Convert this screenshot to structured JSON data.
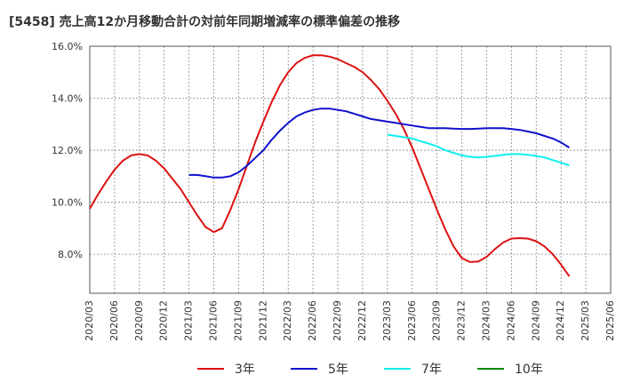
{
  "chart_data": {
    "type": "line",
    "title": "[5458]  売上高12か月移動合計の対前年同期増減率の標準偏差の推移",
    "xlabel": "",
    "ylabel": "",
    "ylim": [
      6.5,
      16.0
    ],
    "yticks": [
      "8.0%",
      "10.0%",
      "12.0%",
      "14.0%",
      "16.0%"
    ],
    "ytick_values": [
      8.0,
      10.0,
      12.0,
      14.0,
      16.0
    ],
    "x_categories": [
      "2020/03",
      "2020/06",
      "2020/09",
      "2020/12",
      "2021/03",
      "2021/06",
      "2021/09",
      "2021/12",
      "2022/03",
      "2022/06",
      "2022/09",
      "2022/12",
      "2023/03",
      "2023/06",
      "2023/09",
      "2023/12",
      "2024/03",
      "2024/06",
      "2024/09",
      "2024/12",
      "2025/03",
      "2025/06"
    ],
    "grid": true,
    "legend_position": "bottom",
    "series": [
      {
        "name": "3年",
        "color": "#dd1111",
        "x_index": [
          0,
          1,
          2,
          3,
          4,
          5,
          6,
          7,
          8,
          9,
          10,
          11,
          12,
          13,
          14,
          15,
          16,
          17,
          18,
          19,
          20,
          21,
          22,
          23,
          24,
          25,
          26,
          27,
          28,
          29,
          30,
          31,
          32,
          33,
          34,
          35,
          36,
          37,
          38,
          39,
          40,
          41,
          42,
          43,
          44,
          45,
          46,
          47,
          48,
          49,
          50,
          51,
          52,
          53,
          54,
          55,
          56,
          57,
          58,
          59,
          60
        ],
        "values": [
          9.75,
          10.3,
          10.8,
          11.25,
          11.6,
          11.8,
          11.85,
          11.8,
          11.6,
          11.3,
          10.9,
          10.5,
          10.0,
          9.5,
          9.05,
          8.85,
          9.0,
          9.7,
          10.5,
          11.4,
          12.3,
          13.1,
          13.85,
          14.5,
          15.0,
          15.35,
          15.55,
          15.65,
          15.65,
          15.6,
          15.5,
          15.35,
          15.2,
          15.0,
          14.7,
          14.35,
          13.9,
          13.4,
          12.8,
          12.1,
          11.3,
          10.5,
          9.7,
          8.95,
          8.3,
          7.85,
          7.7,
          7.72,
          7.9,
          8.2,
          8.45,
          8.6,
          8.62,
          8.6,
          8.5,
          8.3,
          8.0,
          7.6,
          7.15,
          null,
          null
        ]
      },
      {
        "name": "5年",
        "color": "#1111cc",
        "x_index": [
          12,
          13,
          14,
          15,
          16,
          17,
          18,
          19,
          20,
          21,
          22,
          23,
          24,
          25,
          26,
          27,
          28,
          29,
          30,
          31,
          32,
          33,
          34,
          35,
          36,
          37,
          38,
          39,
          40,
          41,
          42,
          43,
          44,
          45,
          46,
          47,
          48,
          49,
          50,
          51,
          52,
          53,
          54,
          55,
          56,
          57,
          58
        ],
        "values": [
          11.05,
          11.05,
          11.0,
          10.95,
          10.95,
          11.0,
          11.15,
          11.4,
          11.7,
          12.0,
          12.4,
          12.75,
          13.05,
          13.3,
          13.45,
          13.55,
          13.6,
          13.6,
          13.55,
          13.5,
          13.4,
          13.3,
          13.2,
          13.15,
          13.1,
          13.05,
          13.0,
          12.95,
          12.9,
          12.85,
          12.85,
          12.85,
          12.83,
          12.82,
          12.82,
          12.83,
          12.85,
          12.85,
          12.85,
          12.82,
          12.78,
          12.72,
          12.65,
          12.55,
          12.45,
          12.3,
          12.1
        ]
      },
      {
        "name": "7年",
        "color": "#11eeee",
        "x_index": [
          36,
          37,
          38,
          39,
          40,
          41,
          42,
          43,
          44,
          45,
          46,
          47,
          48,
          49,
          50,
          51,
          52,
          53,
          54,
          55,
          56,
          57,
          58
        ],
        "values": [
          12.6,
          12.55,
          12.5,
          12.45,
          12.35,
          12.25,
          12.15,
          12.0,
          11.9,
          11.8,
          11.75,
          11.72,
          11.75,
          11.78,
          11.82,
          11.85,
          11.85,
          11.82,
          11.78,
          11.72,
          11.62,
          11.52,
          11.42
        ]
      },
      {
        "name": "10年",
        "color": "#118811",
        "x_index": [],
        "values": []
      }
    ]
  }
}
